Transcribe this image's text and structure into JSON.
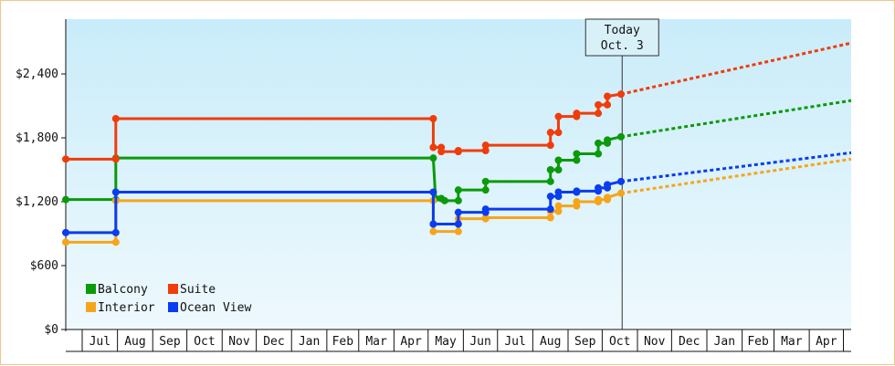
{
  "chart_data": {
    "type": "line",
    "title": "",
    "xlabel": "",
    "ylabel": "",
    "x_ticks": [
      "Jul",
      "Aug",
      "Sep",
      "Oct",
      "Nov",
      "Dec",
      "Jan",
      "Feb",
      "Mar",
      "Apr",
      "May",
      "Jun",
      "Jul",
      "Aug",
      "Sep",
      "Oct",
      "Nov",
      "Dec",
      "Jan",
      "Feb",
      "Mar",
      "Apr"
    ],
    "y_ticks": [
      "$0",
      "$600",
      "$1,200",
      "$1,800",
      "$2,400"
    ],
    "ylim": [
      0,
      2400
    ],
    "today_marker": {
      "line1": "Today",
      "line2": "Oct. 3"
    },
    "legend_placement": "bottom-left",
    "grid": false,
    "background_gradient": [
      "#c9ecfa",
      "#eef9fd"
    ],
    "series": [
      {
        "name": "Balcony",
        "color": "#0a9a0a",
        "points": [
          [
            "2013-06-01",
            1220
          ],
          [
            "2013-07-15",
            1220
          ],
          [
            "2013-07-15",
            1610
          ],
          [
            "2014-04-20",
            1610
          ],
          [
            "2014-04-22",
            1230
          ],
          [
            "2014-04-27",
            1230
          ],
          [
            "2014-04-30",
            1210
          ],
          [
            "2014-05-12",
            1210
          ],
          [
            "2014-05-12",
            1310
          ],
          [
            "2014-06-05",
            1310
          ],
          [
            "2014-06-05",
            1390
          ],
          [
            "2014-08-01",
            1390
          ],
          [
            "2014-08-01",
            1500
          ],
          [
            "2014-08-08",
            1500
          ],
          [
            "2014-08-08",
            1590
          ],
          [
            "2014-08-24",
            1590
          ],
          [
            "2014-08-24",
            1650
          ],
          [
            "2014-09-12",
            1650
          ],
          [
            "2014-09-12",
            1750
          ],
          [
            "2014-09-20",
            1750
          ],
          [
            "2014-09-20",
            1780
          ],
          [
            "2014-10-02",
            1810
          ]
        ],
        "forecast": [
          [
            "2014-10-02",
            1810
          ],
          [
            "2015-05-01",
            2150
          ]
        ]
      },
      {
        "name": "Suite",
        "color": "#f03c0a",
        "points": [
          [
            "2013-06-01",
            1600
          ],
          [
            "2013-07-15",
            1600
          ],
          [
            "2013-07-15",
            1980
          ],
          [
            "2014-04-20",
            1980
          ],
          [
            "2014-04-20",
            1710
          ],
          [
            "2014-04-27",
            1710
          ],
          [
            "2014-04-27",
            1670
          ],
          [
            "2014-05-12",
            1670
          ],
          [
            "2014-05-12",
            1680
          ],
          [
            "2014-06-05",
            1680
          ],
          [
            "2014-06-05",
            1730
          ],
          [
            "2014-08-01",
            1730
          ],
          [
            "2014-08-01",
            1850
          ],
          [
            "2014-08-08",
            1850
          ],
          [
            "2014-08-08",
            2000
          ],
          [
            "2014-08-24",
            2000
          ],
          [
            "2014-08-24",
            2030
          ],
          [
            "2014-09-12",
            2030
          ],
          [
            "2014-09-12",
            2110
          ],
          [
            "2014-09-20",
            2110
          ],
          [
            "2014-09-20",
            2190
          ],
          [
            "2014-10-02",
            2210
          ]
        ],
        "forecast": [
          [
            "2014-10-02",
            2210
          ],
          [
            "2015-05-01",
            2690
          ]
        ]
      },
      {
        "name": "Interior",
        "color": "#f6a51a",
        "points": [
          [
            "2013-06-01",
            820
          ],
          [
            "2013-07-15",
            820
          ],
          [
            "2013-07-15",
            1210
          ],
          [
            "2014-04-20",
            1210
          ],
          [
            "2014-04-20",
            920
          ],
          [
            "2014-05-12",
            920
          ],
          [
            "2014-05-12",
            1040
          ],
          [
            "2014-06-05",
            1040
          ],
          [
            "2014-06-05",
            1050
          ],
          [
            "2014-08-01",
            1050
          ],
          [
            "2014-08-01",
            1110
          ],
          [
            "2014-08-08",
            1110
          ],
          [
            "2014-08-08",
            1160
          ],
          [
            "2014-08-24",
            1160
          ],
          [
            "2014-08-24",
            1200
          ],
          [
            "2014-09-12",
            1200
          ],
          [
            "2014-09-12",
            1220
          ],
          [
            "2014-09-20",
            1220
          ],
          [
            "2014-09-20",
            1240
          ],
          [
            "2014-10-02",
            1280
          ]
        ],
        "forecast": [
          [
            "2014-10-02",
            1280
          ],
          [
            "2015-05-01",
            1600
          ]
        ]
      },
      {
        "name": "Ocean View",
        "color": "#0a3cf0",
        "points": [
          [
            "2013-06-01",
            910
          ],
          [
            "2013-07-15",
            910
          ],
          [
            "2013-07-15",
            1290
          ],
          [
            "2014-04-20",
            1290
          ],
          [
            "2014-04-20",
            990
          ],
          [
            "2014-05-12",
            990
          ],
          [
            "2014-05-12",
            1100
          ],
          [
            "2014-06-05",
            1100
          ],
          [
            "2014-06-05",
            1130
          ],
          [
            "2014-08-01",
            1130
          ],
          [
            "2014-08-01",
            1250
          ],
          [
            "2014-08-08",
            1250
          ],
          [
            "2014-08-08",
            1290
          ],
          [
            "2014-08-24",
            1290
          ],
          [
            "2014-08-24",
            1300
          ],
          [
            "2014-09-12",
            1300
          ],
          [
            "2014-09-12",
            1330
          ],
          [
            "2014-09-20",
            1330
          ],
          [
            "2014-09-20",
            1360
          ],
          [
            "2014-10-02",
            1390
          ]
        ],
        "forecast": [
          [
            "2014-10-02",
            1390
          ],
          [
            "2015-05-01",
            1660
          ]
        ]
      }
    ],
    "legend": [
      {
        "label": "Balcony",
        "color": "#0a9a0a"
      },
      {
        "label": "Suite",
        "color": "#f03c0a"
      },
      {
        "label": "Interior",
        "color": "#f6a51a"
      },
      {
        "label": "Ocean View",
        "color": "#0a3cf0"
      }
    ]
  }
}
